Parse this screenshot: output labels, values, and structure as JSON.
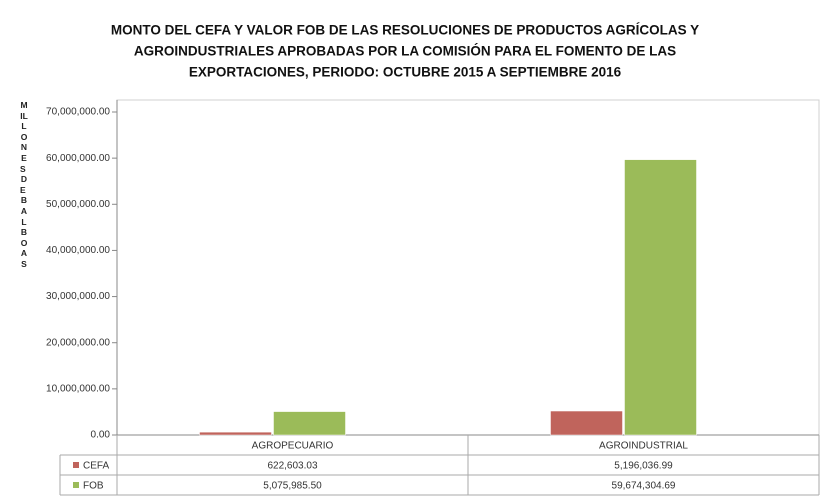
{
  "chart_data": {
    "type": "bar",
    "title": [
      "MONTO DEL CEFA Y VALOR FOB DE LAS RESOLUCIONES DE PRODUCTOS AGRÍCOLAS Y",
      "AGROINDUSTRIALES APROBADAS POR LA COMISIÓN PARA EL FOMENTO DE LAS",
      "EXPORTACIONES, PERIODO: OCTUBRE 2015 A SEPTIEMBRE 2016"
    ],
    "y_label": "MILLONES DE BALBOAS",
    "categories": [
      "AGROPECUARIO",
      "AGROINDUSTRIAL"
    ],
    "series": [
      {
        "name": "CEFA",
        "color": "#c0645c",
        "values": [
          622603.03,
          5196036.99
        ],
        "value_labels": [
          "622,603.03",
          "5,196,036.99"
        ]
      },
      {
        "name": "FOB",
        "color": "#9bbb59",
        "values": [
          5075985.5,
          59674304.69
        ],
        "value_labels": [
          "5,075,985.50",
          "59,674,304.69"
        ]
      }
    ],
    "ylim": [
      0,
      70000000
    ],
    "yticks": [
      {
        "value": 0,
        "label": "0.00"
      },
      {
        "value": 10000000,
        "label": "10,000,000.00"
      },
      {
        "value": 20000000,
        "label": "20,000,000.00"
      },
      {
        "value": 30000000,
        "label": "30,000,000.00"
      },
      {
        "value": 40000000,
        "label": "40,000,000.00"
      },
      {
        "value": 50000000,
        "label": "50,000,000.00"
      },
      {
        "value": 60000000,
        "label": "60,000,000.00"
      },
      {
        "value": 70000000,
        "label": "70,000,000.00"
      }
    ],
    "grid": false
  }
}
